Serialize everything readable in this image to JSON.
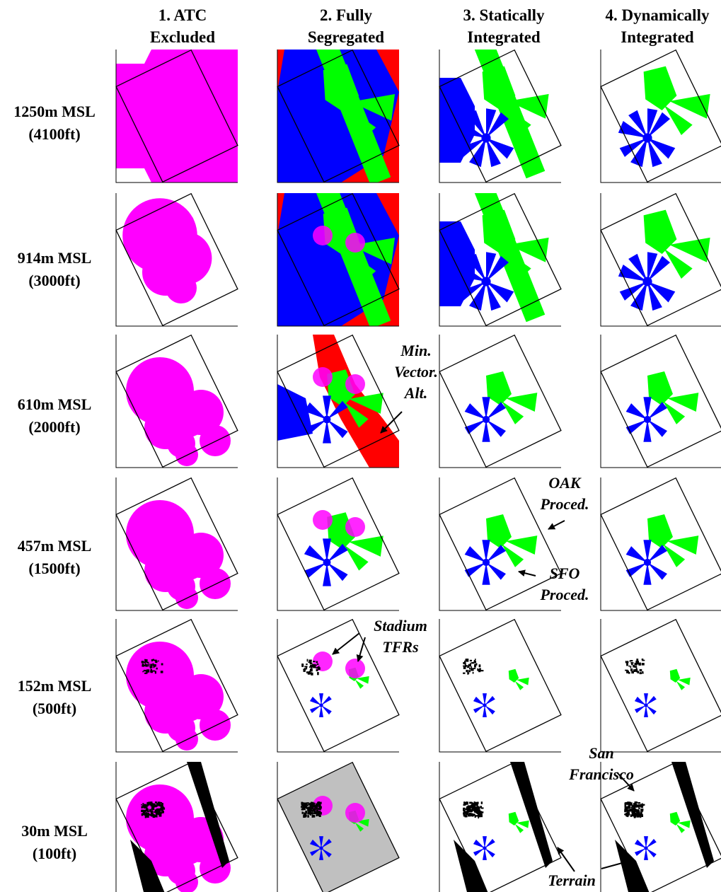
{
  "columns": [
    {
      "line1": "1. ATC",
      "line2": "Excluded"
    },
    {
      "line1": "2. Fully",
      "line2": "Segregated"
    },
    {
      "line1": "3. Statically",
      "line2": "Integrated"
    },
    {
      "line1": "4. Dynamically",
      "line2": "Integrated"
    }
  ],
  "rows": [
    {
      "line1": "1250m MSL",
      "line2": "(4100ft)"
    },
    {
      "line1": "914m MSL",
      "line2": "(3000ft)"
    },
    {
      "line1": "610m MSL",
      "line2": "(2000ft)"
    },
    {
      "line1": "457m MSL",
      "line2": "(1500ft)"
    },
    {
      "line1": "152m MSL",
      "line2": "(500ft)"
    },
    {
      "line1": "30m MSL",
      "line2": "(100ft)"
    }
  ],
  "annotations": {
    "mva": [
      "Min.",
      "Vector.",
      "Alt."
    ],
    "oak": [
      "OAK",
      "Proced."
    ],
    "sfo": [
      "SFO",
      "Proced."
    ],
    "stadium": [
      "Stadium",
      "TFRs"
    ],
    "sf": [
      "San",
      "Francisco"
    ],
    "terrain": "Terrain"
  },
  "colors": {
    "atc_excluded": "#ff00ff",
    "min_vector_alt": "#ff0000",
    "sfo_procedures": "#0000ff",
    "oak_procedures": "#00ff00",
    "terrain": "#000000",
    "tfr": "#ff00ff",
    "no_fly": "#c0c0c0"
  }
}
